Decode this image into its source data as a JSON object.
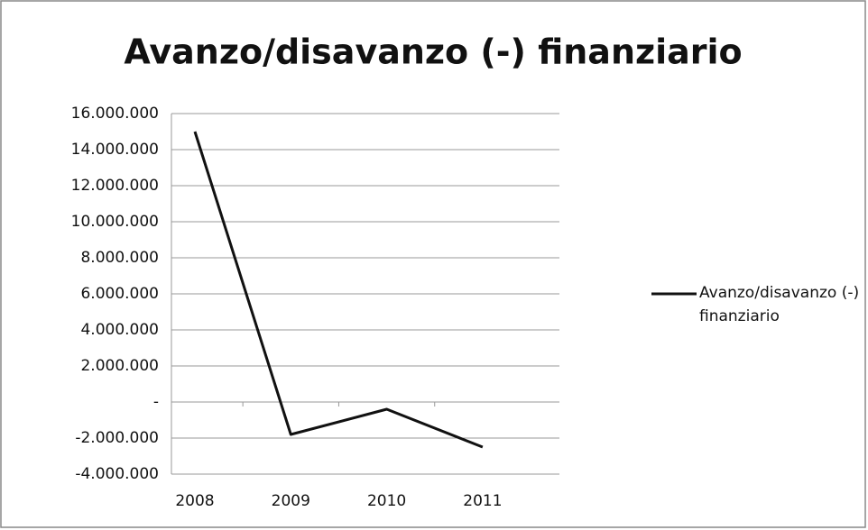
{
  "chart_data": {
    "type": "line",
    "title": "Avanzo/disavanzo (-) finanziario",
    "categories": [
      "2008",
      "2009",
      "2010",
      "2011"
    ],
    "series": [
      {
        "name": "Avanzo/disavanzo (-) finanziario",
        "color": "#111111",
        "values": [
          15000000,
          -1800000,
          -400000,
          -2500000
        ]
      }
    ],
    "ylim": [
      -4000000,
      16000000
    ],
    "yticks": [
      {
        "value": -4000000,
        "label": "-4.000.000"
      },
      {
        "value": -2000000,
        "label": "-2.000.000"
      },
      {
        "value": 0,
        "label": "-"
      },
      {
        "value": 2000000,
        "label": "2.000.000"
      },
      {
        "value": 4000000,
        "label": "4.000.000"
      },
      {
        "value": 6000000,
        "label": "6.000.000"
      },
      {
        "value": 8000000,
        "label": "8.000.000"
      },
      {
        "value": 10000000,
        "label": "10.000.000"
      },
      {
        "value": 12000000,
        "label": "12.000.000"
      },
      {
        "value": 14000000,
        "label": "14.000.000"
      },
      {
        "value": 16000000,
        "label": "16.000.000"
      }
    ],
    "grid": true,
    "legend": "right"
  }
}
